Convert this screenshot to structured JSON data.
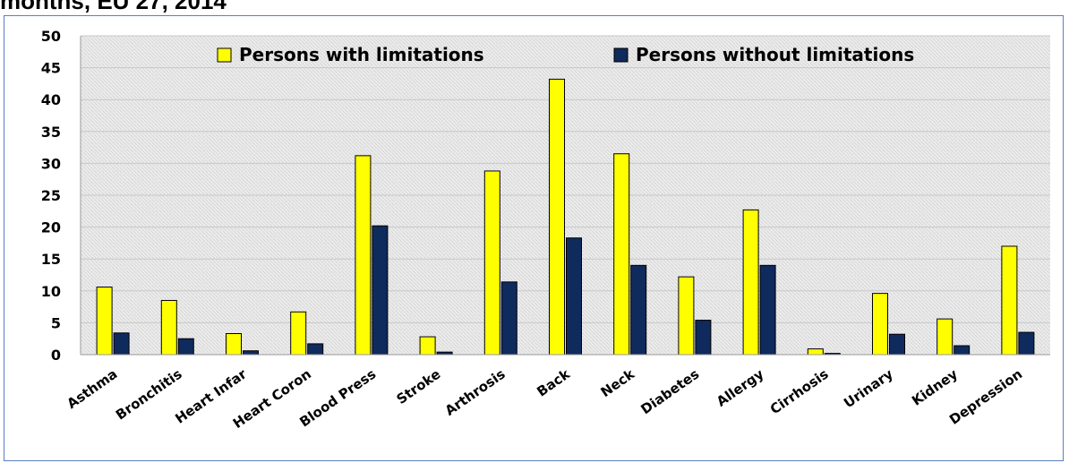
{
  "title_fragment": "months, EU 27, 2014",
  "chart_data": {
    "type": "bar",
    "categories": [
      "Asthma",
      "Bronchitis",
      "Heart Infar",
      "Heart Coron",
      "Blood Press",
      "Stroke",
      "Arthrosis",
      "Back",
      "Neck",
      "Diabetes",
      "Allergy",
      "Cirrhosis",
      "Urinary",
      "Kidney",
      "Depression"
    ],
    "series": [
      {
        "name": "Persons with limitations",
        "color": "#ffff00",
        "values": [
          10.6,
          8.5,
          3.3,
          6.7,
          31.2,
          2.8,
          28.8,
          43.2,
          31.5,
          12.2,
          22.7,
          0.9,
          9.6,
          5.6,
          17.0
        ]
      },
      {
        "name": "Persons without limitations",
        "color": "#0f2a5c",
        "values": [
          3.4,
          2.5,
          0.6,
          1.7,
          20.2,
          0.4,
          11.4,
          18.3,
          14.0,
          5.4,
          14.0,
          0.2,
          3.2,
          1.4,
          3.5
        ]
      }
    ],
    "ylim": [
      0,
      50
    ],
    "yticks": [
      0,
      5,
      10,
      15,
      20,
      25,
      30,
      35,
      40,
      45,
      50
    ],
    "grid": true,
    "legend_position": "top"
  }
}
